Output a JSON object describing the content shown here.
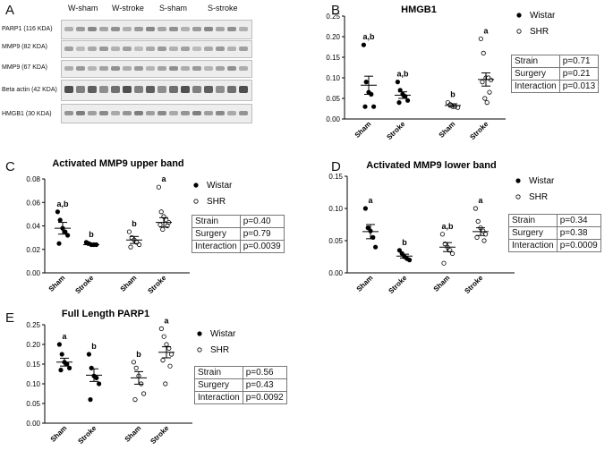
{
  "panels": {
    "A": "A",
    "B": "B",
    "C": "C",
    "D": "D",
    "E": "E"
  },
  "blot": {
    "groups": [
      "W-sham",
      "W-stroke",
      "S-sham",
      "S-stroke"
    ],
    "rows": [
      "PARP1 (116 KDA)",
      "MMP9 (82 KDA)",
      "MMP9 (67 KDA)",
      "Beta actin (42 KDA)",
      "HMGB1 (30 KDA)"
    ]
  },
  "chart_data": [
    {
      "id": "B",
      "type": "scatter",
      "title": "HMGB1",
      "categories": [
        "Sham",
        "Stroke",
        "Sham",
        "Stroke"
      ],
      "ylim": [
        0,
        0.25
      ],
      "yticks": [
        0,
        0.05,
        0.1,
        0.15,
        0.2,
        0.25
      ],
      "tick_labels": [
        "0.00",
        "0.05",
        "0.10",
        "0.15",
        "0.20",
        "0.25"
      ],
      "series": [
        {
          "name": "Wistar",
          "points": [
            [
              0.18,
              0.09,
              0.065,
              0.06,
              0.03,
              0.03
            ],
            [
              0.09,
              0.07,
              0.06,
              0.055,
              0.045,
              0.04
            ]
          ],
          "mean": [
            0.082,
            0.058
          ],
          "sem": [
            0.022,
            0.008
          ]
        },
        {
          "name": "SHR",
          "points": [
            [
              0.04,
              0.035,
              0.03,
              0.03,
              0.028
            ],
            [
              0.195,
              0.16,
              0.1,
              0.1,
              0.095,
              0.09,
              0.065,
              0.05,
              0.04
            ]
          ],
          "mean": [
            0.033,
            0.096
          ],
          "sem": [
            0.004,
            0.016
          ]
        }
      ],
      "letters": [
        "a,b",
        "a,b",
        "b",
        "a"
      ],
      "stats": [
        [
          "Strain",
          "p=0.71"
        ],
        [
          "Surgery",
          "p=0.21"
        ],
        [
          "Interaction",
          "p=0.013"
        ]
      ]
    },
    {
      "id": "C",
      "type": "scatter",
      "title": "Activated MMP9 upper band",
      "categories": [
        "Sham",
        "Stroke",
        "Sham",
        "Stroke"
      ],
      "ylim": [
        0,
        0.08
      ],
      "yticks": [
        0,
        0.02,
        0.04,
        0.06,
        0.08
      ],
      "tick_labels": [
        "0.00",
        "0.02",
        "0.04",
        "0.06",
        "0.08"
      ],
      "series": [
        {
          "name": "Wistar",
          "points": [
            [
              0.052,
              0.045,
              0.038,
              0.035,
              0.032,
              0.025
            ],
            [
              0.026,
              0.025,
              0.024,
              0.024,
              0.024
            ]
          ],
          "mean": [
            0.038,
            0.024
          ],
          "sem": [
            0.005,
            0.0005
          ]
        },
        {
          "name": "SHR",
          "points": [
            [
              0.035,
              0.03,
              0.028,
              0.026,
              0.024,
              0.022
            ],
            [
              0.073,
              0.052,
              0.048,
              0.045,
              0.043,
              0.041,
              0.04,
              0.037
            ]
          ],
          "mean": [
            0.028,
            0.043
          ],
          "sem": [
            0.003,
            0.004
          ]
        }
      ],
      "letters": [
        "a,b",
        "b",
        "b",
        "a"
      ],
      "stats": [
        [
          "Strain",
          "p=0.40"
        ],
        [
          "Surgery",
          "p=0.79"
        ],
        [
          "Interaction",
          "p=0.0039"
        ]
      ]
    },
    {
      "id": "D",
      "type": "scatter",
      "title": "Activated MMP9 lower band",
      "categories": [
        "Sham",
        "Stroke",
        "Sham",
        "Stroke"
      ],
      "ylim": [
        0,
        0.15
      ],
      "yticks": [
        0,
        0.05,
        0.1,
        0.15
      ],
      "tick_labels": [
        "0.00",
        "0.05",
        "0.10",
        "0.15"
      ],
      "series": [
        {
          "name": "Wistar",
          "points": [
            [
              0.1,
              0.07,
              0.065,
              0.055,
              0.04
            ],
            [
              0.035,
              0.03,
              0.025,
              0.022,
              0.02
            ]
          ],
          "mean": [
            0.064,
            0.026
          ],
          "sem": [
            0.011,
            0.003
          ]
        },
        {
          "name": "SHR",
          "points": [
            [
              0.06,
              0.045,
              0.04,
              0.035,
              0.03,
              0.015
            ],
            [
              0.1,
              0.08,
              0.07,
              0.065,
              0.06,
              0.055,
              0.05
            ]
          ],
          "mean": [
            0.04,
            0.064
          ],
          "sem": [
            0.007,
            0.006
          ]
        }
      ],
      "letters": [
        "a",
        "b",
        "a,b",
        "a"
      ],
      "stats": [
        [
          "Strain",
          "p=0.34"
        ],
        [
          "Surgery",
          "p=0.38"
        ],
        [
          "Interaction",
          "p=0.0009"
        ]
      ]
    },
    {
      "id": "E",
      "type": "scatter",
      "title": "Full Length PARP1",
      "categories": [
        "Sham",
        "Stroke",
        "Sham",
        "Stroke"
      ],
      "ylim": [
        0,
        0.25
      ],
      "yticks": [
        0,
        0.05,
        0.1,
        0.15,
        0.2,
        0.25
      ],
      "tick_labels": [
        "0.00",
        "0.05",
        "0.10",
        "0.15",
        "0.20",
        "0.25"
      ],
      "series": [
        {
          "name": "Wistar",
          "points": [
            [
              0.2,
              0.175,
              0.155,
              0.15,
              0.14,
              0.135
            ],
            [
              0.175,
              0.14,
              0.12,
              0.115,
              0.1,
              0.06
            ]
          ],
          "mean": [
            0.155,
            0.122
          ],
          "sem": [
            0.01,
            0.016
          ]
        },
        {
          "name": "SHR",
          "points": [
            [
              0.155,
              0.14,
              0.12,
              0.1,
              0.075,
              0.06
            ],
            [
              0.24,
              0.22,
              0.2,
              0.19,
              0.175,
              0.16,
              0.145,
              0.1
            ]
          ],
          "mean": [
            0.115,
            0.18
          ],
          "sem": [
            0.016,
            0.014
          ]
        }
      ],
      "letters": [
        "a",
        "b",
        "b",
        "a"
      ],
      "stats": [
        [
          "Strain",
          "p=0.56"
        ],
        [
          "Surgery",
          "p=0.43"
        ],
        [
          "Interaction",
          "p=0.0092"
        ]
      ]
    }
  ]
}
